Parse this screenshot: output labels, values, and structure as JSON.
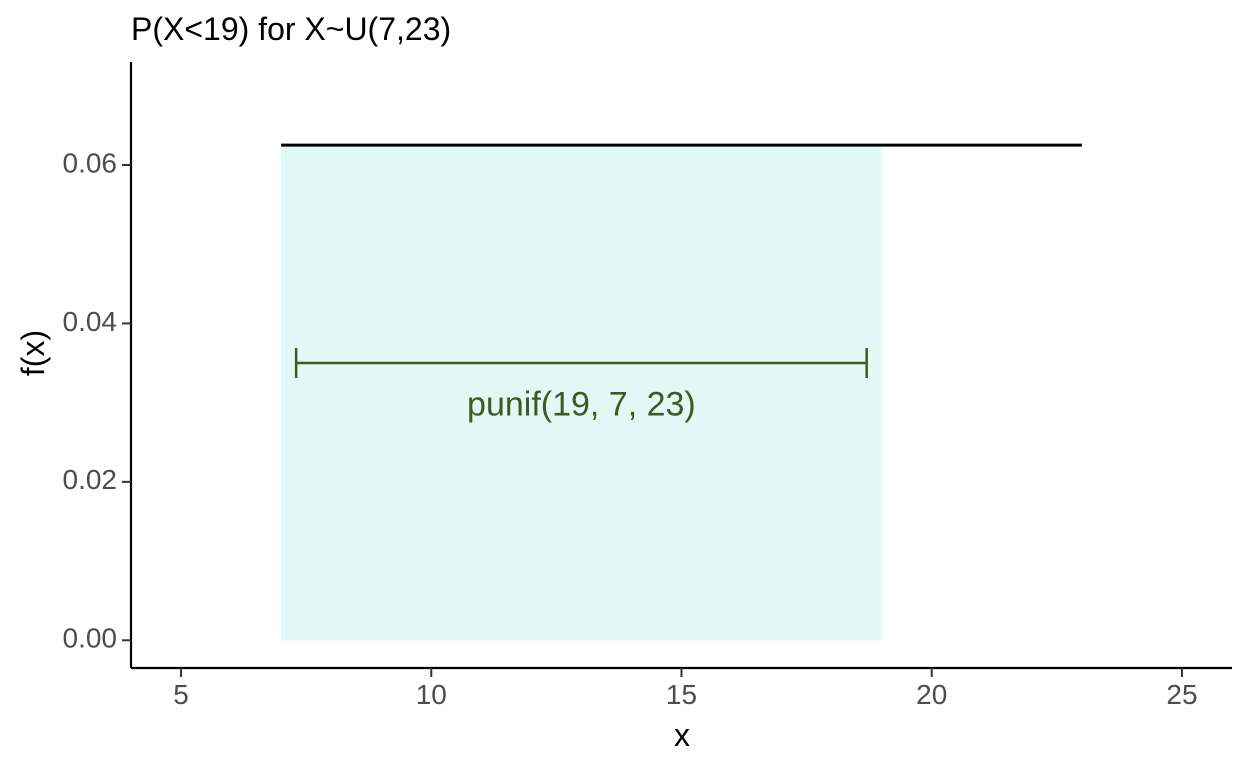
{
  "chart_data": {
    "type": "area",
    "title": "P(X<19) for X~U(7,23)",
    "xlabel": "x",
    "ylabel": "f(x)",
    "xlim": [
      4,
      26
    ],
    "ylim": [
      -0.0035,
      0.073
    ],
    "x_ticks": [
      5,
      10,
      15,
      20,
      25
    ],
    "x_tick_labels": [
      "5",
      "10",
      "15",
      "20",
      "25"
    ],
    "y_ticks": [
      0,
      0.02,
      0.04,
      0.06
    ],
    "y_tick_labels": [
      "0.00",
      "0.02",
      "0.04",
      "0.06"
    ],
    "grid": false,
    "density": {
      "x": [
        7,
        23
      ],
      "y": [
        0.0625,
        0.0625
      ],
      "color": "#000000"
    },
    "shaded_region": {
      "x": [
        7,
        19
      ],
      "y": [
        0,
        0.0625
      ],
      "color": "#e0f9f5"
    },
    "annotation": {
      "text": "punif(19, 7, 23)",
      "x_range": [
        7.3,
        18.7
      ],
      "y": 0.035,
      "label_x": 13,
      "label_y": 0.0295,
      "color": "#3d5a23"
    }
  }
}
